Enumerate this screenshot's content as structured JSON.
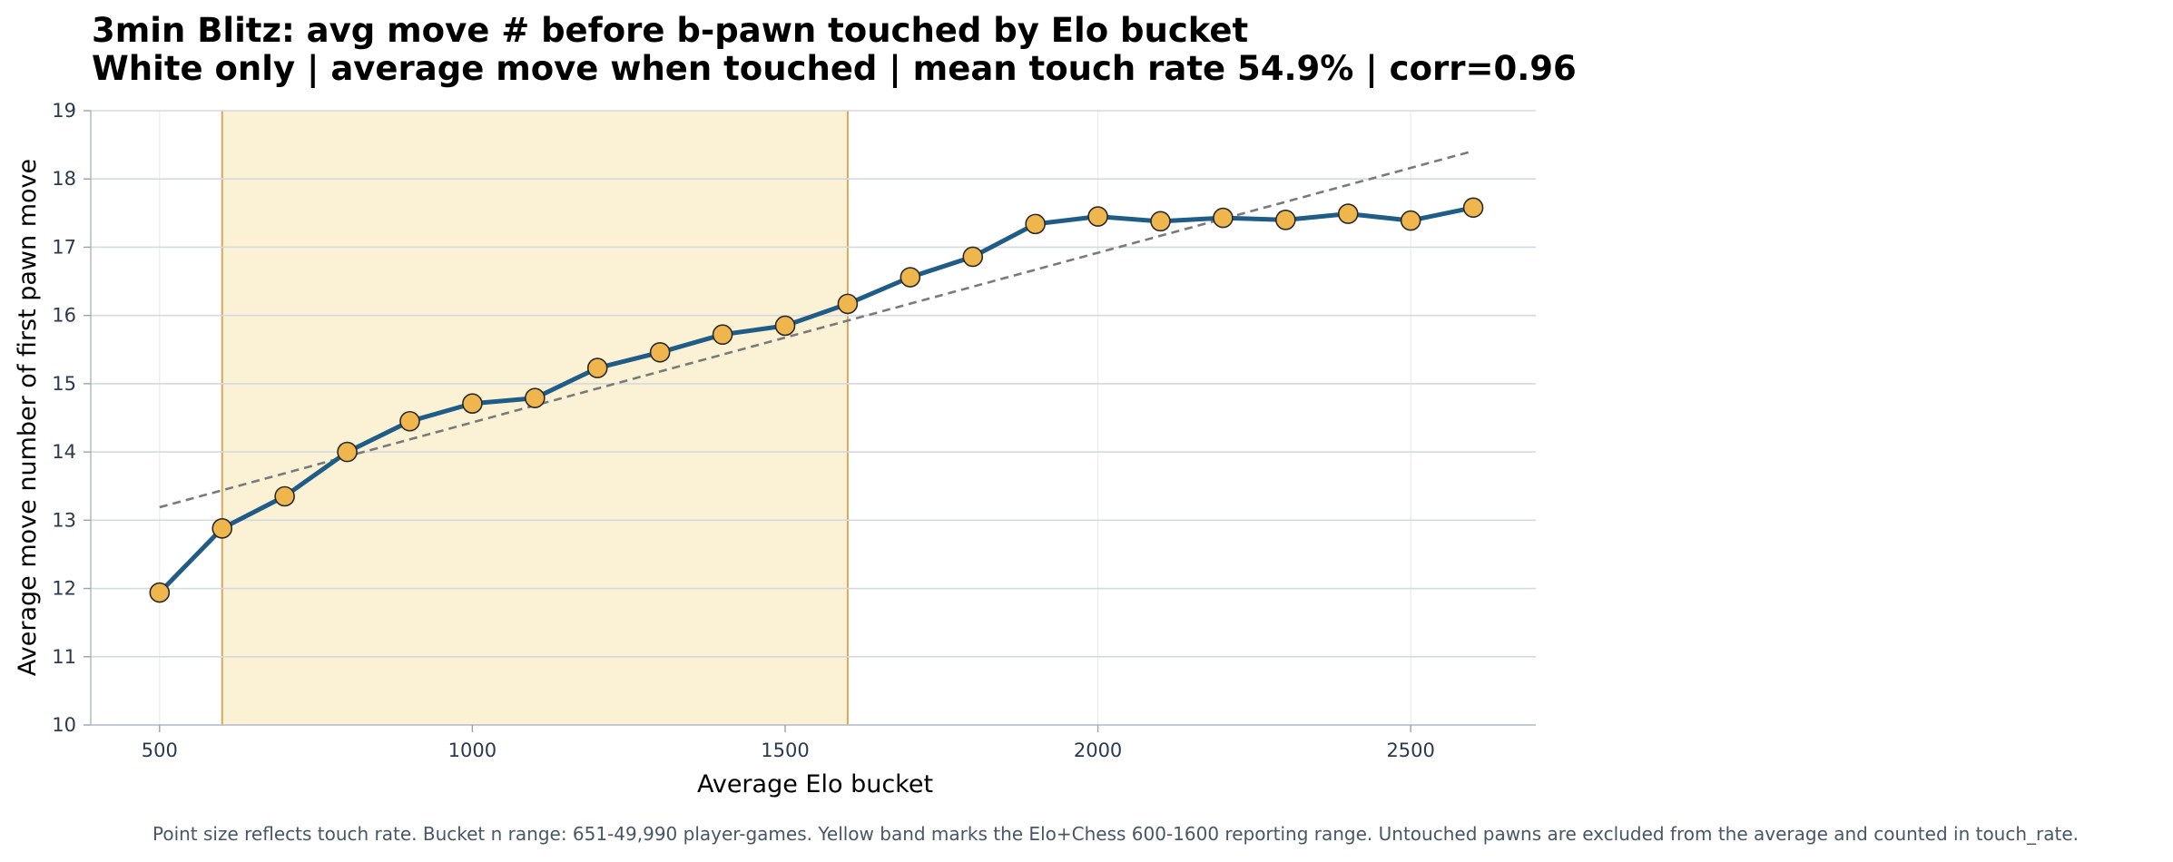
{
  "colors": {
    "line": "#1f5c88",
    "marker_fill": "#f0b64e",
    "marker_edge": "#2a2a2a",
    "band_fill": "#fbf1d4",
    "band_edge": "#dca55c",
    "trend": "#7a7a7a",
    "grid_major": "#d5d9e0",
    "grid_minor": "#ececec"
  },
  "chart_data": {
    "type": "line",
    "title": "3min Blitz: avg move # before b-pawn touched by Elo bucket",
    "subtitle": "White only | average move when touched | mean touch rate 54.9% | corr=0.96",
    "xlabel": "Average Elo bucket",
    "ylabel": "Average move number of first pawn move",
    "xlim": [
      390,
      2700
    ],
    "ylim": [
      10,
      19
    ],
    "x_ticks": [
      500,
      1000,
      1500,
      2000,
      2500
    ],
    "y_ticks": [
      10,
      11,
      12,
      13,
      14,
      15,
      16,
      17,
      18,
      19
    ],
    "grid": true,
    "series": [
      {
        "x": [
          500,
          600,
          700,
          800,
          900,
          1000,
          1100,
          1200,
          1300,
          1400,
          1500,
          1600,
          1700,
          1800,
          1900,
          2000,
          2100,
          2200,
          2300,
          2400,
          2500,
          2600
        ],
        "values": [
          11.94,
          12.88,
          13.35,
          14.0,
          14.45,
          14.71,
          14.79,
          15.23,
          15.46,
          15.72,
          15.85,
          16.17,
          16.56,
          16.86,
          17.34,
          17.45,
          17.38,
          17.43,
          17.4,
          17.49,
          17.39,
          17.58
        ]
      }
    ],
    "trendline": {
      "x": [
        500,
        2600
      ],
      "y": [
        13.19,
        18.41
      ],
      "style": "dashed"
    },
    "band": {
      "x_range": [
        600,
        1600
      ]
    },
    "footnote": "Point size reflects touch rate. Bucket n range: 651-49,990 player-games. Yellow band marks the Elo+Chess 600-1600 reporting range. Untouched pawns are excluded from the average and counted in touch_rate."
  }
}
